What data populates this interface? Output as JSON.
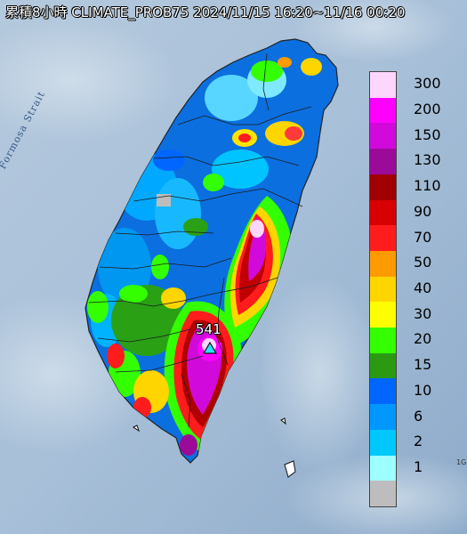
{
  "header": {
    "title": "累積8小時 CLIMATE_PROB75 2024/11/15 16:20~11/16 00:20"
  },
  "map": {
    "strait_label": "Formosa Strait",
    "peak_value": "541",
    "peak_marker": "triangle-marker-icon",
    "edge_text": "1G"
  },
  "legend": {
    "entries": [
      {
        "label": "300",
        "color": "#fdd6fd"
      },
      {
        "label": "200",
        "color": "#ff00ff"
      },
      {
        "label": "150",
        "color": "#d10adb"
      },
      {
        "label": "130",
        "color": "#9c0a9a"
      },
      {
        "label": "110",
        "color": "#a00000"
      },
      {
        "label": "90",
        "color": "#d80000"
      },
      {
        "label": "70",
        "color": "#ff1c1c"
      },
      {
        "label": "50",
        "color": "#ff9a00"
      },
      {
        "label": "40",
        "color": "#ffd500"
      },
      {
        "label": "30",
        "color": "#ffff00"
      },
      {
        "label": "20",
        "color": "#33ff00"
      },
      {
        "label": "15",
        "color": "#2b9a12"
      },
      {
        "label": "10",
        "color": "#0066ff"
      },
      {
        "label": "6",
        "color": "#0098ff"
      },
      {
        "label": "2",
        "color": "#00c8ff"
      },
      {
        "label": "1",
        "color": "#9effff"
      },
      {
        "label": "",
        "color": "#bdbdbd"
      }
    ]
  }
}
